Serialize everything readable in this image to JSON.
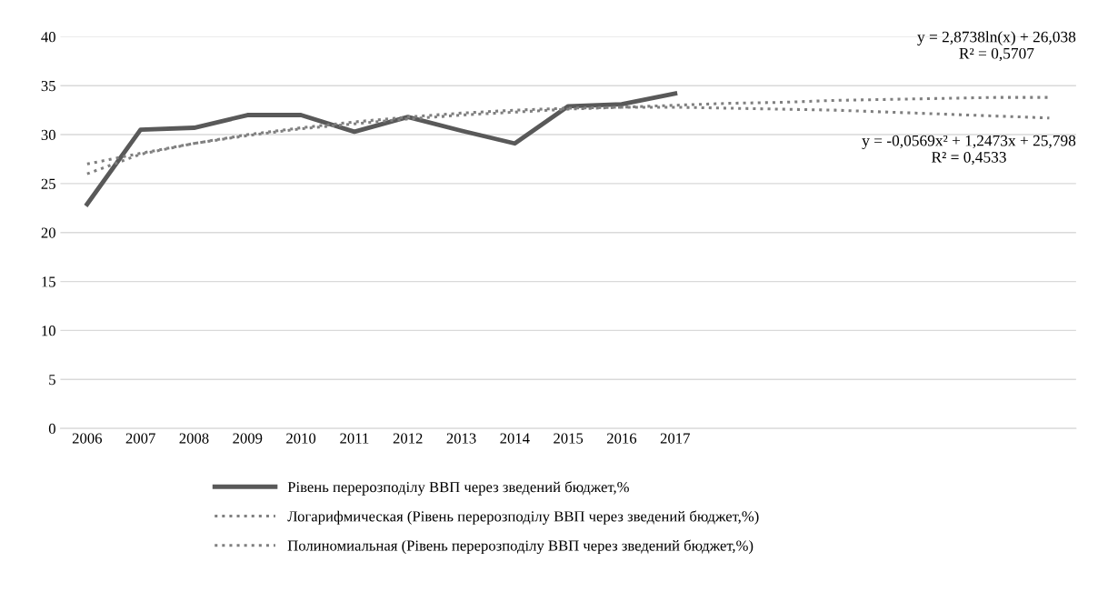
{
  "chart_data": {
    "type": "line",
    "categories": [
      "2006",
      "2007",
      "2008",
      "2009",
      "2010",
      "2011",
      "2012",
      "2013",
      "2014",
      "2015",
      "2016",
      "2017",
      null,
      null,
      null,
      null,
      null,
      null,
      null
    ],
    "series": [
      {
        "name": "Рівень перерозподілу ВВП через зведений бюджет,%",
        "color": "#595959",
        "line_style": "solid",
        "values": [
          22.9,
          30.5,
          30.7,
          32.0,
          32.0,
          30.3,
          31.8,
          30.4,
          29.1,
          32.9,
          33.1,
          34.2,
          null,
          null,
          null,
          null,
          null,
          null,
          null
        ]
      },
      {
        "name": "Логарифмическая (Рівень перерозподілу ВВП через зведений бюджет,%)",
        "color": "#7f7f7f",
        "line_style": "dotted",
        "values": [
          26.0,
          28.0,
          29.1,
          29.9,
          30.6,
          31.1,
          31.6,
          32.0,
          32.3,
          32.6,
          32.8,
          33.0,
          33.2,
          33.3,
          33.5,
          33.6,
          33.7,
          33.8,
          33.8
        ]
      },
      {
        "name": "Полиномиальная (Рівень перерозподілу ВВП через зведений бюджет,%)",
        "color": "#7f7f7f",
        "line_style": "dotted",
        "values": [
          27.0,
          28.1,
          29.1,
          30.0,
          30.7,
          31.3,
          31.8,
          32.2,
          32.5,
          32.7,
          32.8,
          32.8,
          32.7,
          32.6,
          32.5,
          32.3,
          32.1,
          31.9,
          31.7
        ]
      }
    ],
    "annotations": [
      "y = 2,8738ln(x) + 26,038\nR² = 0,5707",
      "y = -0,0569x² + 1,2473x + 25,798\nR² = 0,4533"
    ],
    "ylim": [
      0,
      40
    ],
    "yticks": [
      0,
      5,
      10,
      15,
      20,
      25,
      30,
      35,
      40
    ],
    "grid": "y",
    "legend": "bottom",
    "marker": "none"
  }
}
